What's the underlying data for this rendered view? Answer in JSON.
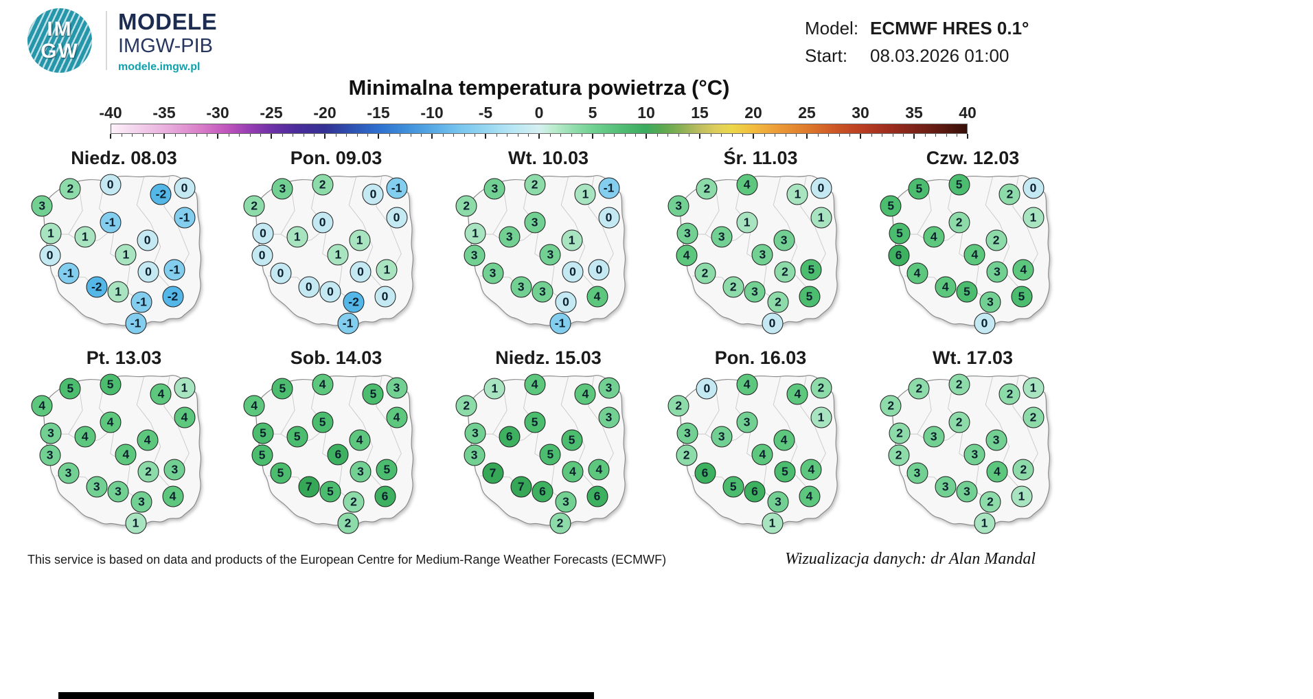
{
  "header": {
    "logo_top": "IM",
    "logo_bottom": "GW",
    "brand_title": "MODELE",
    "brand_subtitle": "IMGW-PIB",
    "brand_url": "modele.imgw.pl",
    "model_label": "Model:",
    "model_value": "ECMWF HRES 0.1°",
    "start_label": "Start:",
    "start_value": "08.03.2026 01:00"
  },
  "title": "Minimalna temperatura powietrza (°C)",
  "colorbar": {
    "min": -40,
    "max": 40,
    "tick_labels": [
      "-40",
      "-35",
      "-30",
      "-25",
      "-20",
      "-15",
      "-10",
      "-5",
      "0",
      "5",
      "10",
      "15",
      "20",
      "25",
      "30",
      "35",
      "40"
    ]
  },
  "footer": {
    "attribution": "This service is based on data and products of the European Centre for Medium-Range Weather Forecasts (ECMWF)",
    "credit": "Wizualizacja danych: dr Alan Mandal"
  },
  "chart_data": {
    "type": "heatmap",
    "subtype": "map-grid-point-values",
    "title": "Minimalna temperatura powietrza (°C)",
    "unit": "°C",
    "model": "ECMWF HRES 0.1°",
    "run_start": "08.03.2026 01:00",
    "colorbar_range": [
      -40,
      40
    ],
    "colorbar_ticks": [
      -40,
      -35,
      -30,
      -25,
      -20,
      -15,
      -10,
      -5,
      0,
      5,
      10,
      15,
      20,
      25,
      30,
      35,
      40
    ],
    "marker_positions_pct": [
      [
        22.5,
        11
      ],
      [
        43,
        8.5
      ],
      [
        69,
        14
      ],
      [
        81,
        10.5
      ],
      [
        8,
        21
      ],
      [
        43,
        30.5
      ],
      [
        81,
        28
      ],
      [
        12.5,
        37
      ],
      [
        30,
        39
      ],
      [
        62,
        41
      ],
      [
        12,
        50
      ],
      [
        51,
        49.5
      ],
      [
        21.5,
        60.5
      ],
      [
        62.5,
        59.5
      ],
      [
        76,
        58.5
      ],
      [
        36,
        68.5
      ],
      [
        47,
        71.5
      ],
      [
        59,
        77.5
      ],
      [
        75,
        74
      ],
      [
        56,
        90
      ]
    ],
    "maps": [
      {
        "label": "Niedz. 08.03",
        "values": [
          2,
          0,
          -2,
          0,
          3,
          -1,
          -1,
          1,
          1,
          0,
          0,
          1,
          -1,
          0,
          -1,
          -2,
          1,
          -1,
          -2,
          -1
        ]
      },
      {
        "label": "Pon. 09.03",
        "values": [
          3,
          2,
          0,
          -1,
          2,
          0,
          0,
          0,
          1,
          1,
          0,
          1,
          0,
          0,
          1,
          0,
          0,
          -2,
          0,
          -1
        ]
      },
      {
        "label": "Wt. 10.03",
        "values": [
          3,
          2,
          1,
          -1,
          2,
          3,
          0,
          1,
          3,
          1,
          3,
          3,
          3,
          0,
          0,
          3,
          3,
          0,
          4,
          -1
        ]
      },
      {
        "label": "Śr. 11.03",
        "values": [
          2,
          4,
          1,
          0,
          3,
          1,
          1,
          3,
          3,
          3,
          4,
          3,
          2,
          2,
          5,
          2,
          3,
          2,
          5,
          0
        ]
      },
      {
        "label": "Czw. 12.03",
        "values": [
          5,
          5,
          2,
          0,
          5,
          2,
          1,
          5,
          4,
          2,
          6,
          4,
          4,
          3,
          4,
          4,
          5,
          3,
          5,
          0
        ]
      },
      {
        "label": "Pt. 13.03",
        "values": [
          5,
          5,
          4,
          1,
          4,
          4,
          4,
          3,
          4,
          4,
          3,
          4,
          3,
          2,
          3,
          3,
          3,
          3,
          4,
          1
        ]
      },
      {
        "label": "Sob. 14.03",
        "values": [
          5,
          4,
          5,
          3,
          4,
          5,
          4,
          5,
          5,
          4,
          5,
          6,
          5,
          3,
          5,
          7,
          5,
          2,
          6,
          2
        ]
      },
      {
        "label": "Niedz. 15.03",
        "values": [
          1,
          4,
          4,
          3,
          2,
          5,
          3,
          3,
          6,
          5,
          3,
          5,
          7,
          4,
          4,
          7,
          6,
          3,
          6,
          2
        ]
      },
      {
        "label": "Pon. 16.03",
        "values": [
          0,
          4,
          4,
          2,
          2,
          3,
          1,
          3,
          3,
          4,
          2,
          4,
          6,
          5,
          4,
          5,
          6,
          3,
          4,
          1
        ]
      },
      {
        "label": "Wt. 17.03",
        "values": [
          2,
          2,
          2,
          1,
          2,
          2,
          2,
          2,
          3,
          3,
          2,
          3,
          3,
          4,
          2,
          3,
          3,
          2,
          1,
          1
        ]
      }
    ],
    "value_colors": {
      "-2": "#54b7e8",
      "-1": "#83cdef",
      "0": "#c4e9f3",
      "1": "#a9e4c0",
      "2": "#8edbaa",
      "3": "#73d093",
      "4": "#5ec77e",
      "5": "#4cbc6e",
      "6": "#3eb161",
      "7": "#35a756"
    }
  }
}
